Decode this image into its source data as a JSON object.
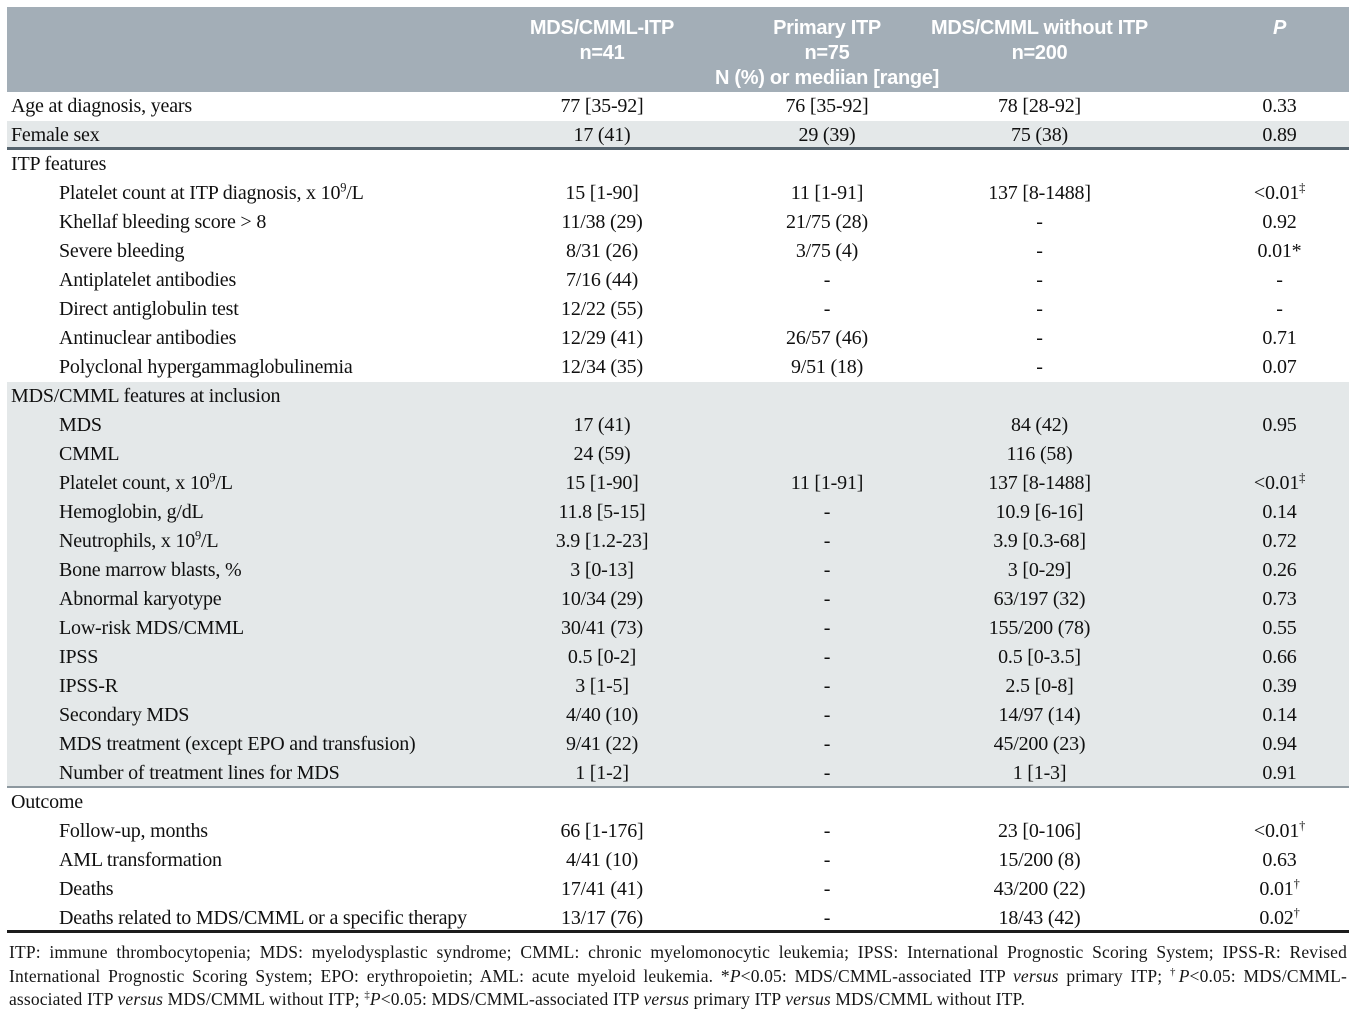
{
  "colors": {
    "header_bg": "#a3aeb7",
    "band_bg": "#e4e8e9",
    "divider_dark": "#56646e",
    "divider_mid": "#8d989f",
    "bottom_line": "#1d1d1d"
  },
  "header": {
    "col2": {
      "line1": "MDS/CMML-ITP",
      "line2": "n=41"
    },
    "col3": {
      "line1": "Primary ITP",
      "line2": "n=75",
      "line3": "N (%) or mediian [range]"
    },
    "col4": {
      "line1": "MDS/CMML without ITP",
      "line2": "n=200"
    },
    "col5": {
      "line1": "P"
    }
  },
  "rows": [
    {
      "type": "data",
      "label": "Age at diagnosis, years",
      "indent": 0,
      "shaded": false,
      "values": [
        "77 [35-92]",
        "76 [35-92]",
        "78 [28-92]",
        "0.33"
      ]
    },
    {
      "type": "data",
      "label": "Female sex",
      "indent": 0,
      "shaded": true,
      "border": "dark",
      "values": [
        "17 (41)",
        "29 (39)",
        "75 (38)",
        "0.89"
      ]
    },
    {
      "type": "section",
      "label": "ITP features",
      "shaded": false,
      "values": [
        "",
        "",
        "",
        ""
      ]
    },
    {
      "type": "data",
      "label": "Platelet count at ITP diagnosis, x 10{^9}/L",
      "indent": 1,
      "shaded": false,
      "values": [
        "15 [1-90]",
        "11 [1-91]",
        "137 [8-1488]",
        "<0.01{^‡}"
      ]
    },
    {
      "type": "data",
      "label": "Khellaf bleeding score > 8",
      "indent": 1,
      "shaded": false,
      "values": [
        "11/38 (29)",
        "21/75 (28)",
        "-",
        "0.92"
      ]
    },
    {
      "type": "data",
      "label": "Severe bleeding",
      "indent": 1,
      "shaded": false,
      "values": [
        "8/31 (26)",
        "3/75 (4)",
        "-",
        "0.01*"
      ]
    },
    {
      "type": "data",
      "label": "Antiplatelet antibodies",
      "indent": 1,
      "shaded": false,
      "values": [
        "7/16 (44)",
        "-",
        "-",
        "-"
      ]
    },
    {
      "type": "data",
      "label": "Direct antiglobulin test",
      "indent": 1,
      "shaded": false,
      "values": [
        "12/22 (55)",
        "-",
        "-",
        "-"
      ]
    },
    {
      "type": "data",
      "label": "Antinuclear antibodies",
      "indent": 1,
      "shaded": false,
      "values": [
        "12/29 (41)",
        "26/57 (46)",
        "-",
        "0.71"
      ]
    },
    {
      "type": "data",
      "label": "Polyclonal hypergammaglobulinemia",
      "indent": 1,
      "shaded": false,
      "values": [
        "12/34 (35)",
        "9/51 (18)",
        "-",
        "0.07"
      ]
    },
    {
      "type": "section",
      "label": "MDS/CMML features at inclusion",
      "shaded": true,
      "values": [
        "",
        "",
        "",
        ""
      ]
    },
    {
      "type": "data",
      "label": "MDS",
      "indent": 1,
      "shaded": true,
      "values": [
        "17 (41)",
        "",
        "84 (42)",
        "0.95"
      ]
    },
    {
      "type": "data",
      "label": "CMML",
      "indent": 1,
      "shaded": true,
      "values": [
        "24 (59)",
        "",
        "116 (58)",
        ""
      ]
    },
    {
      "type": "data",
      "label": "Platelet count, x 10{^9}/L",
      "indent": 1,
      "shaded": true,
      "values": [
        "15 [1-90]",
        "11 [1-91]",
        "137 [8-1488]",
        "<0.01{^‡}"
      ]
    },
    {
      "type": "data",
      "label": "Hemoglobin, g/dL",
      "indent": 1,
      "shaded": true,
      "values": [
        "11.8 [5-15]",
        "-",
        "10.9 [6-16]",
        "0.14"
      ]
    },
    {
      "type": "data",
      "label": "Neutrophils, x 10{^9}/L",
      "indent": 1,
      "shaded": true,
      "values": [
        "3.9 [1.2-23]",
        "-",
        "3.9 [0.3-68]",
        "0.72"
      ]
    },
    {
      "type": "data",
      "label": "Bone marrow blasts, %",
      "indent": 1,
      "shaded": true,
      "values": [
        "3 [0-13]",
        "-",
        "3 [0-29]",
        "0.26"
      ]
    },
    {
      "type": "data",
      "label": "Abnormal karyotype",
      "indent": 1,
      "shaded": true,
      "values": [
        "10/34 (29)",
        "-",
        "63/197 (32)",
        "0.73"
      ]
    },
    {
      "type": "data",
      "label": "Low-risk MDS/CMML",
      "indent": 1,
      "shaded": true,
      "values": [
        "30/41 (73)",
        "-",
        "155/200 (78)",
        "0.55"
      ]
    },
    {
      "type": "data",
      "label": "IPSS",
      "indent": 1,
      "shaded": true,
      "values": [
        "0.5 [0-2]",
        "-",
        "0.5 [0-3.5]",
        "0.66"
      ]
    },
    {
      "type": "data",
      "label": "IPSS-R",
      "indent": 1,
      "shaded": true,
      "values": [
        "3 [1-5]",
        "-",
        "2.5 [0-8]",
        "0.39"
      ]
    },
    {
      "type": "data",
      "label": "Secondary MDS",
      "indent": 1,
      "shaded": true,
      "values": [
        "4/40 (10)",
        "-",
        "14/97 (14)",
        "0.14"
      ]
    },
    {
      "type": "data",
      "label": "MDS treatment (except EPO and transfusion)",
      "indent": 1,
      "shaded": true,
      "values": [
        "9/41 (22)",
        "-",
        "45/200 (23)",
        "0.94"
      ]
    },
    {
      "type": "data",
      "label": "Number of treatment lines for MDS",
      "indent": 1,
      "shaded": true,
      "border": "mid",
      "values": [
        "1 [1-2]",
        "-",
        "1 [1-3]",
        "0.91"
      ]
    },
    {
      "type": "section",
      "label": "Outcome",
      "shaded": false,
      "values": [
        "",
        "",
        "",
        ""
      ]
    },
    {
      "type": "data",
      "label": "Follow-up, months",
      "indent": 1,
      "shaded": false,
      "values": [
        "66 [1-176]",
        "-",
        "23 [0-106]",
        "<0.01{^†}"
      ]
    },
    {
      "type": "data",
      "label": "AML transformation",
      "indent": 1,
      "shaded": false,
      "values": [
        "4/41 (10)",
        "-",
        "15/200 (8)",
        "0.63"
      ]
    },
    {
      "type": "data",
      "label": "Deaths",
      "indent": 1,
      "shaded": false,
      "values": [
        "17/41 (41)",
        "-",
        "43/200 (22)",
        "0.01{^†}"
      ]
    },
    {
      "type": "data",
      "label": "Deaths related to MDS/CMML or a specific therapy",
      "indent": 1,
      "shaded": false,
      "border": "black",
      "values": [
        "13/17 (76)",
        "-",
        "18/43 (42)",
        "0.02{^†}"
      ]
    }
  ],
  "footnote": "ITP: immune thrombocytopenia; MDS: myelodysplastic syndrome; CMML: chronic myelomonocytic leukemia; IPSS: International Prognostic Scoring System; IPSS-R: Revised International Prognostic Scoring System; EPO: erythropoietin; AML: acute myeloid leukemia. *{i P}<0.05: MDS/CMML-associated ITP {i versus} primary ITP; {^†}{i P}<0.05: MDS/CMML-associated ITP {i versus} MDS/CMML without ITP; {^‡}{i P}<0.05: MDS/CMML-associated ITP {i versus} primary ITP {i versus} MDS/CMML without ITP."
}
